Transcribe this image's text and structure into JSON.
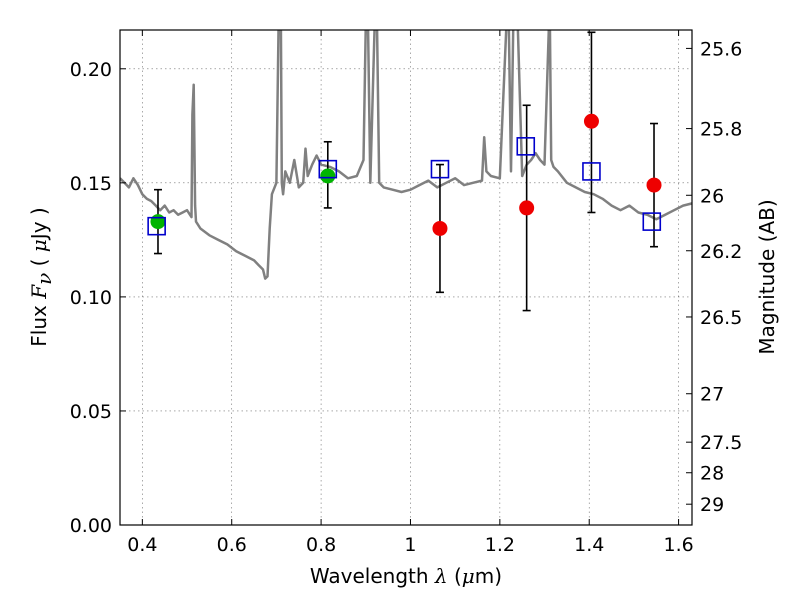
{
  "chart_data": {
    "type": "scatter",
    "xlabel": "Wavelength",
    "xlabel_symbol": "λ",
    "xlabel_unit_open": "(",
    "xlabel_unit_mu": "μ",
    "xlabel_unit_rest": "m)",
    "ylabel": "Flux",
    "ylabel_symbol": "F",
    "ylabel_sub": "ν",
    "ylabel_unit_open": "(",
    "ylabel_unit_mu": "μ",
    "ylabel_unit_rest": "Jy )",
    "y2label": "Magnitude (AB)",
    "xlim": [
      0.35,
      1.63
    ],
    "ylim": [
      0.0,
      0.217
    ],
    "grid": true,
    "x_ticks": [
      {
        "value": 0.4,
        "label": "0.4"
      },
      {
        "value": 0.6,
        "label": "0.6"
      },
      {
        "value": 0.8,
        "label": "0.8"
      },
      {
        "value": 1.0,
        "label": "1"
      },
      {
        "value": 1.2,
        "label": "1.2"
      },
      {
        "value": 1.4,
        "label": "1.4"
      },
      {
        "value": 1.6,
        "label": "1.6"
      }
    ],
    "y_ticks": [
      {
        "value": 0.0,
        "label": "0.00"
      },
      {
        "value": 0.05,
        "label": "0.05"
      },
      {
        "value": 0.1,
        "label": "0.10"
      },
      {
        "value": 0.15,
        "label": "0.15"
      },
      {
        "value": 0.2,
        "label": "0.20"
      }
    ],
    "y2_ticks": [
      {
        "value": 25.6,
        "label": "25.6"
      },
      {
        "value": 25.8,
        "label": "25.8"
      },
      {
        "value": 26.0,
        "label": "26"
      },
      {
        "value": 26.2,
        "label": "26.2"
      },
      {
        "value": 26.5,
        "label": "26.5"
      },
      {
        "value": 27.0,
        "label": "27"
      },
      {
        "value": 27.5,
        "label": "27.5"
      },
      {
        "value": 28.0,
        "label": "28"
      },
      {
        "value": 29.0,
        "label": "29"
      }
    ],
    "series": [
      {
        "kind": "line",
        "color": "#808080",
        "x": [
          0.35,
          0.36,
          0.37,
          0.38,
          0.39,
          0.4,
          0.41,
          0.42,
          0.43,
          0.44,
          0.45,
          0.46,
          0.47,
          0.48,
          0.49,
          0.5,
          0.51,
          0.512,
          0.515,
          0.518,
          0.52,
          0.53,
          0.55,
          0.57,
          0.59,
          0.61,
          0.63,
          0.65,
          0.66,
          0.67,
          0.675,
          0.68,
          0.685,
          0.69,
          0.7,
          0.705,
          0.71,
          0.712,
          0.715,
          0.72,
          0.73,
          0.74,
          0.75,
          0.76,
          0.765,
          0.77,
          0.78,
          0.79,
          0.8,
          0.82,
          0.84,
          0.86,
          0.88,
          0.895,
          0.9,
          0.905,
          0.91,
          0.92,
          0.925,
          0.93,
          0.94,
          0.96,
          0.98,
          1.0,
          1.02,
          1.04,
          1.06,
          1.08,
          1.1,
          1.12,
          1.14,
          1.16,
          1.165,
          1.17,
          1.18,
          1.2,
          1.215,
          1.22,
          1.225,
          1.23,
          1.24,
          1.25,
          1.26,
          1.27,
          1.28,
          1.29,
          1.3,
          1.31,
          1.312,
          1.315,
          1.32,
          1.33,
          1.35,
          1.37,
          1.39,
          1.41,
          1.43,
          1.45,
          1.47,
          1.49,
          1.51,
          1.53,
          1.55,
          1.57,
          1.59,
          1.61,
          1.63
        ],
        "y": [
          0.152,
          0.15,
          0.148,
          0.152,
          0.149,
          0.145,
          0.143,
          0.142,
          0.14,
          0.138,
          0.14,
          0.137,
          0.138,
          0.136,
          0.137,
          0.138,
          0.135,
          0.18,
          0.193,
          0.14,
          0.133,
          0.13,
          0.127,
          0.125,
          0.123,
          0.12,
          0.118,
          0.116,
          0.114,
          0.112,
          0.108,
          0.109,
          0.13,
          0.145,
          0.15,
          0.22,
          0.22,
          0.15,
          0.145,
          0.155,
          0.15,
          0.16,
          0.148,
          0.15,
          0.165,
          0.153,
          0.158,
          0.162,
          0.158,
          0.157,
          0.155,
          0.152,
          0.153,
          0.16,
          0.22,
          0.22,
          0.15,
          0.22,
          0.22,
          0.15,
          0.148,
          0.147,
          0.146,
          0.147,
          0.149,
          0.151,
          0.148,
          0.15,
          0.152,
          0.149,
          0.15,
          0.151,
          0.17,
          0.155,
          0.153,
          0.152,
          0.22,
          0.22,
          0.155,
          0.22,
          0.22,
          0.153,
          0.158,
          0.16,
          0.163,
          0.16,
          0.158,
          0.22,
          0.22,
          0.16,
          0.157,
          0.155,
          0.15,
          0.148,
          0.146,
          0.145,
          0.143,
          0.14,
          0.138,
          0.14,
          0.137,
          0.136,
          0.134,
          0.136,
          0.138,
          0.14,
          0.141
        ]
      },
      {
        "kind": "errorbar",
        "color": "#000000",
        "points": [
          {
            "x": 0.435,
            "y": 0.133,
            "lo": 0.119,
            "hi": 0.147
          },
          {
            "x": 0.815,
            "y": 0.153,
            "lo": 0.139,
            "hi": 0.168
          },
          {
            "x": 1.066,
            "y": 0.13,
            "lo": 0.102,
            "hi": 0.158
          },
          {
            "x": 1.26,
            "y": 0.139,
            "lo": 0.094,
            "hi": 0.184
          },
          {
            "x": 1.405,
            "y": 0.177,
            "lo": 0.137,
            "hi": 0.216
          },
          {
            "x": 1.545,
            "y": 0.149,
            "lo": 0.122,
            "hi": 0.176
          }
        ]
      },
      {
        "kind": "markers",
        "marker": "circle",
        "color": "#00b400",
        "x": [
          0.435,
          0.815
        ],
        "y": [
          0.133,
          0.153
        ]
      },
      {
        "kind": "markers",
        "marker": "circle",
        "color": "#ee0000",
        "x": [
          1.066,
          1.26,
          1.405,
          1.545
        ],
        "y": [
          0.13,
          0.139,
          0.177,
          0.149
        ]
      },
      {
        "kind": "markers",
        "marker": "square-open",
        "color": "#0000cc",
        "x": [
          0.432,
          0.815,
          1.066,
          1.258,
          1.405,
          1.54
        ],
        "y": [
          0.131,
          0.156,
          0.156,
          0.166,
          0.155,
          0.133
        ]
      }
    ]
  }
}
